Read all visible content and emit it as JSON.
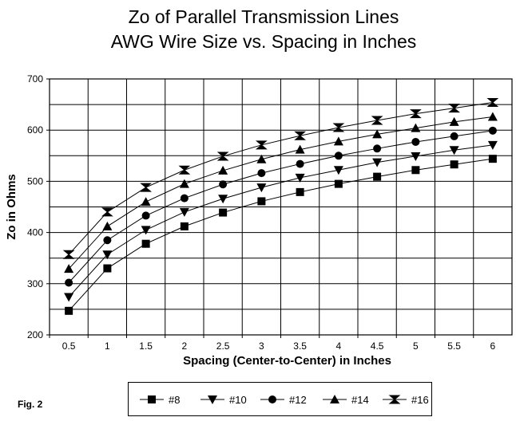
{
  "chart_data": {
    "type": "line",
    "title": [
      "Zo of Parallel Transmission Lines",
      "AWG Wire Size vs. Spacing in Inches"
    ],
    "xlabel": "Spacing (Center-to-Center) in Inches",
    "ylabel": "Zo in Ohms",
    "ylim": [
      200,
      700
    ],
    "yticks": [
      "200",
      "300",
      "400",
      "500",
      "600",
      "700"
    ],
    "grid": true,
    "legend_position": "bottom",
    "categories": [
      "0.5",
      "1",
      "1.5",
      "2",
      "2.5",
      "3",
      "3.5",
      "4",
      "4.5",
      "5",
      "5.5",
      "6"
    ],
    "series": [
      {
        "name": "#8",
        "marker": "square",
        "values": [
          247,
          330,
          378,
          412,
          439,
          461,
          479,
          495,
          509,
          522,
          533,
          544
        ]
      },
      {
        "name": "#10",
        "marker": "tri-down",
        "values": [
          274,
          357,
          405,
          440,
          466,
          488,
          507,
          522,
          537,
          549,
          561,
          571
        ]
      },
      {
        "name": "#12",
        "marker": "circle",
        "values": [
          302,
          385,
          433,
          467,
          494,
          516,
          534,
          550,
          564,
          577,
          588,
          599
        ]
      },
      {
        "name": "#14",
        "marker": "tri-up",
        "values": [
          329,
          412,
          460,
          495,
          521,
          543,
          562,
          578,
          592,
          604,
          616,
          626
        ]
      },
      {
        "name": "#16",
        "marker": "bowtie",
        "values": [
          357,
          440,
          488,
          522,
          549,
          571,
          589,
          605,
          619,
          632,
          643,
          654
        ]
      }
    ]
  },
  "footer": {
    "fig_label": "Fig. 2"
  }
}
